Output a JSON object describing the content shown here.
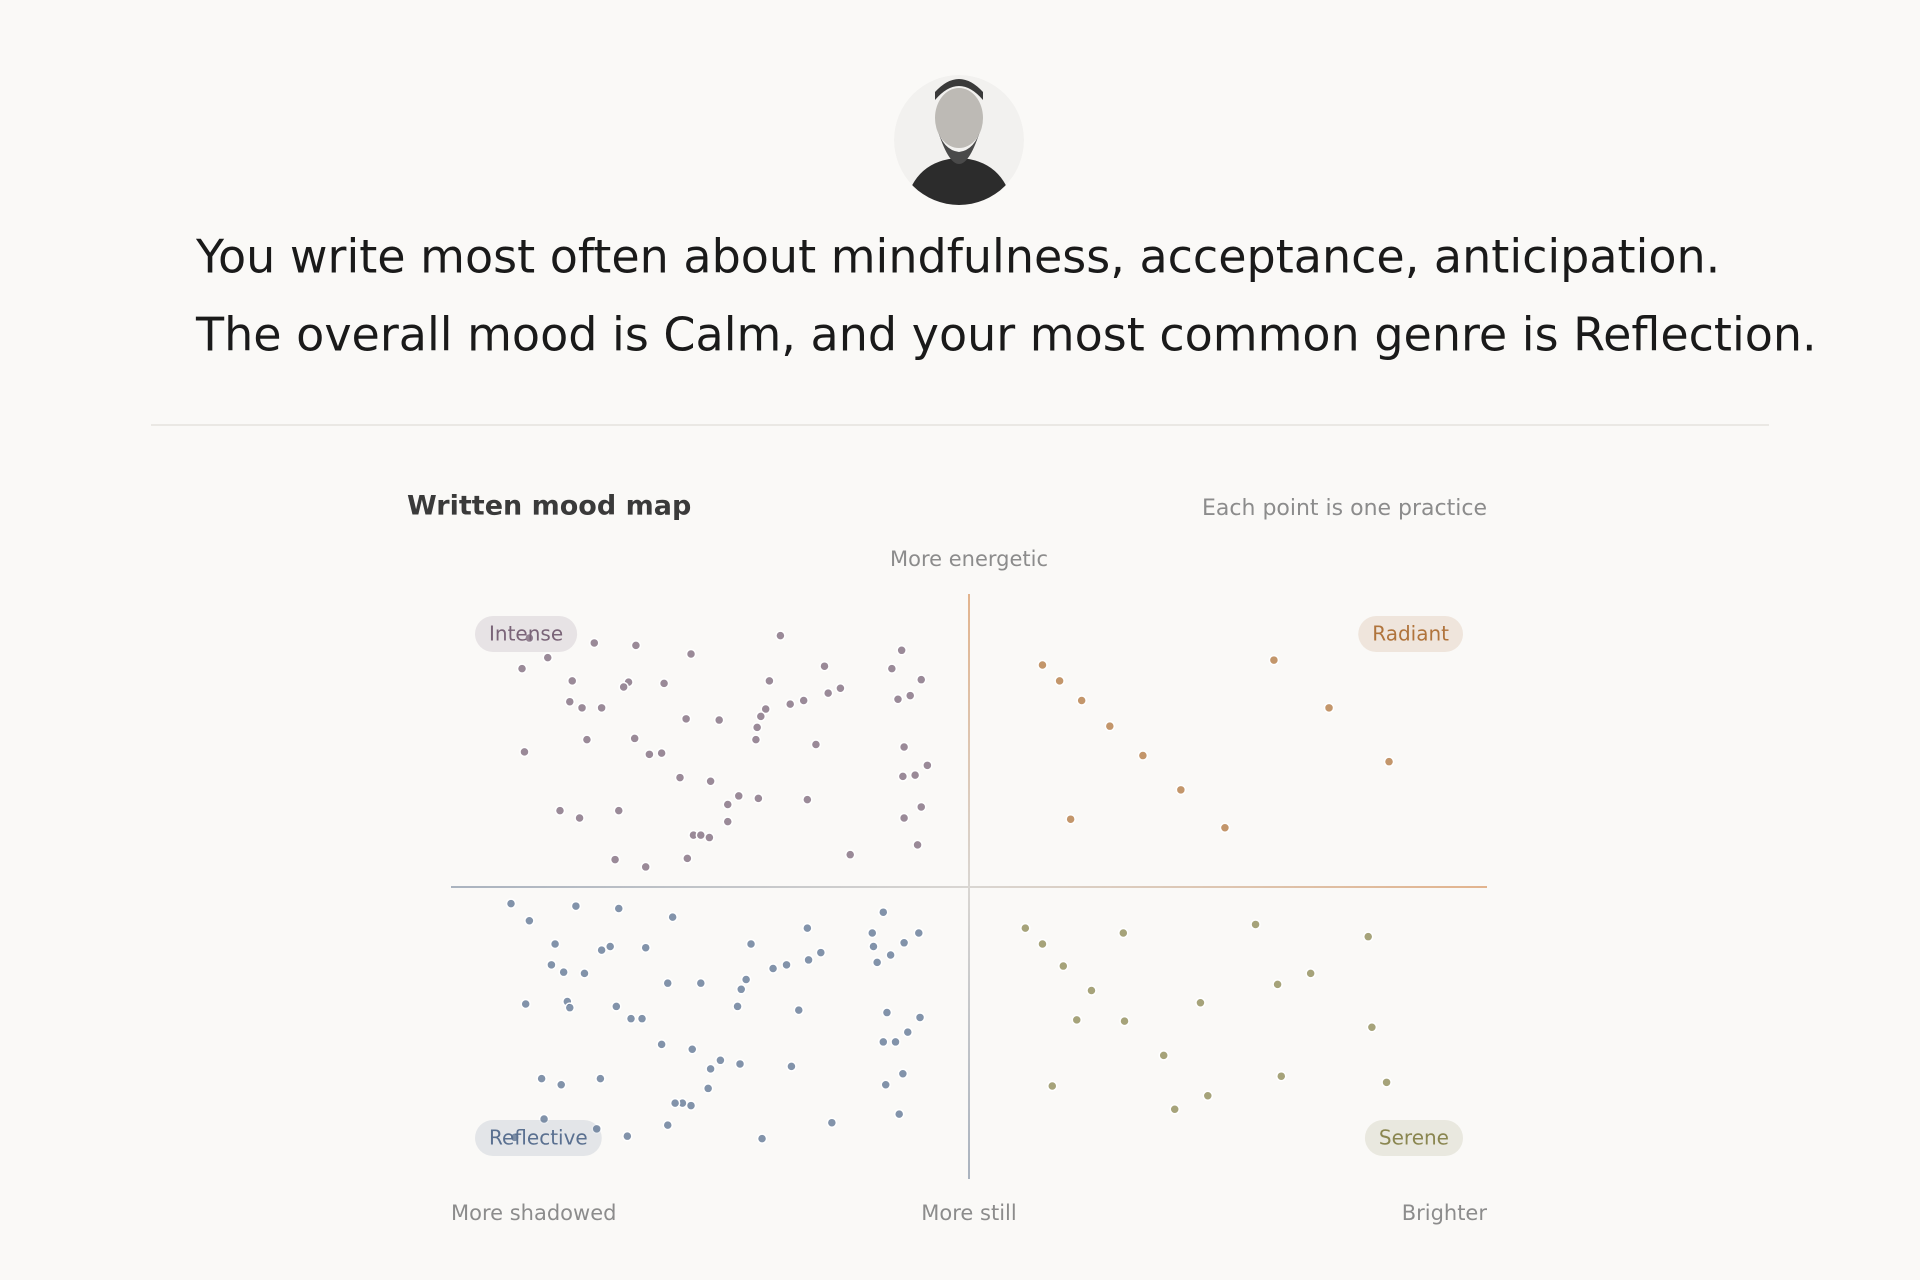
{
  "summary": [
    "You write most often about mindfulness, acceptance, anticipation.",
    "The overall mood is Calm, and your most common genre is Reflection."
  ],
  "chart_data": {
    "type": "scatter",
    "title": "Written mood map",
    "subtitle": "Each point is one practice",
    "y_label_top": "More energetic",
    "y_label_bottom": "More still",
    "x_label_left": "More shadowed",
    "x_label_right": "Brighter",
    "xlim": [
      -423,
      423
    ],
    "ylim": [
      -239,
      239
    ],
    "series": [
      {
        "name": "Intense",
        "color": "#7a6478",
        "corner": "top-left",
        "x": [
          -359,
          -344,
          -365,
          -306,
          -272,
          -227,
          -154,
          -55,
          -324,
          -278,
          -282,
          -249,
          -163,
          -118,
          -63,
          -39,
          -105,
          -115,
          -135,
          -146,
          -166,
          -58,
          -326,
          -316,
          -300,
          -231,
          -204,
          -170,
          -173,
          -48,
          -312,
          -273,
          -261,
          -251,
          -174,
          -125,
          -53,
          -363,
          -34,
          -44,
          -54,
          -236,
          -211,
          -188,
          -172,
          -132,
          -197,
          -39,
          -53,
          -334,
          -318,
          -286,
          -197,
          -225,
          -219,
          -212,
          -42,
          -97,
          -230,
          -289,
          -264
        ],
        "values": [
          203,
          187,
          178,
          199,
          197,
          190,
          205,
          193,
          168,
          167,
          163,
          166,
          168,
          180,
          178,
          169,
          162,
          158,
          152,
          149,
          145,
          153,
          151,
          146,
          146,
          137,
          136,
          139,
          130,
          156,
          120,
          121,
          108,
          109,
          120,
          116,
          114,
          110,
          99,
          91,
          90,
          89,
          86,
          74,
          72,
          71,
          67,
          65,
          56,
          62,
          56,
          62,
          53,
          42,
          42,
          40,
          34,
          26,
          23,
          22,
          16
        ]
      },
      {
        "name": "Radiant",
        "color": "#b0743c",
        "corner": "top-right",
        "x": [
          60,
          74,
          92,
          115,
          142,
          173,
          209,
          83,
          249,
          294,
          343
        ],
        "values": [
          181,
          168,
          152,
          131,
          107,
          79,
          48,
          55,
          185,
          146,
          102
        ]
      },
      {
        "name": "Reflective",
        "color": "#5a7090",
        "corner": "bottom-left",
        "x": [
          -374,
          -359,
          -321,
          -286,
          -242,
          -70,
          -41,
          -53,
          -79,
          -75,
          -64,
          -78,
          -132,
          -121,
          -131,
          -149,
          -160,
          -178,
          -182,
          -186,
          -189,
          -219,
          -246,
          -264,
          -293,
          -300,
          -338,
          -341,
          -331,
          -314,
          -288,
          -276,
          -267,
          -328,
          -326,
          -362,
          -139,
          -67,
          -40,
          -50,
          -60,
          -70,
          -251,
          -226,
          -203,
          -211,
          -187,
          -145,
          -54,
          -68,
          -213,
          -349,
          -333,
          -301,
          -234,
          -240,
          -227,
          -57,
          -112,
          -246,
          -347,
          -304,
          -279,
          -169,
          -371
        ],
        "values": [
          -14,
          -28,
          -16,
          -18,
          -25,
          -21,
          -38,
          -46,
          -38,
          -62,
          -56,
          -49,
          -34,
          -54,
          -60,
          -64,
          -67,
          -47,
          -76,
          -84,
          -98,
          -79,
          -79,
          -50,
          -49,
          -52,
          -47,
          -64,
          -70,
          -71,
          -98,
          -108,
          -108,
          -94,
          -99,
          -96,
          -101,
          -103,
          -107,
          -119,
          -127,
          -127,
          -129,
          -133,
          -142,
          -149,
          -145,
          -147,
          -153,
          -162,
          -165,
          -157,
          -162,
          -157,
          -177,
          -177,
          -179,
          -186,
          -193,
          -195,
          -190,
          -198,
          -204,
          -206,
          -205
        ]
      },
      {
        "name": "Serene",
        "color": "#8a8650",
        "corner": "bottom-right",
        "x": [
          46,
          60,
          126,
          234,
          326,
          77,
          100,
          279,
          252,
          189,
          88,
          127,
          329,
          159,
          68,
          255,
          341,
          195,
          168
        ],
        "values": [
          -34,
          -47,
          -38,
          -31,
          -41,
          -65,
          -85,
          -71,
          -80,
          -95,
          -109,
          -110,
          -115,
          -138,
          -163,
          -155,
          -160,
          -171,
          -182
        ]
      }
    ]
  }
}
